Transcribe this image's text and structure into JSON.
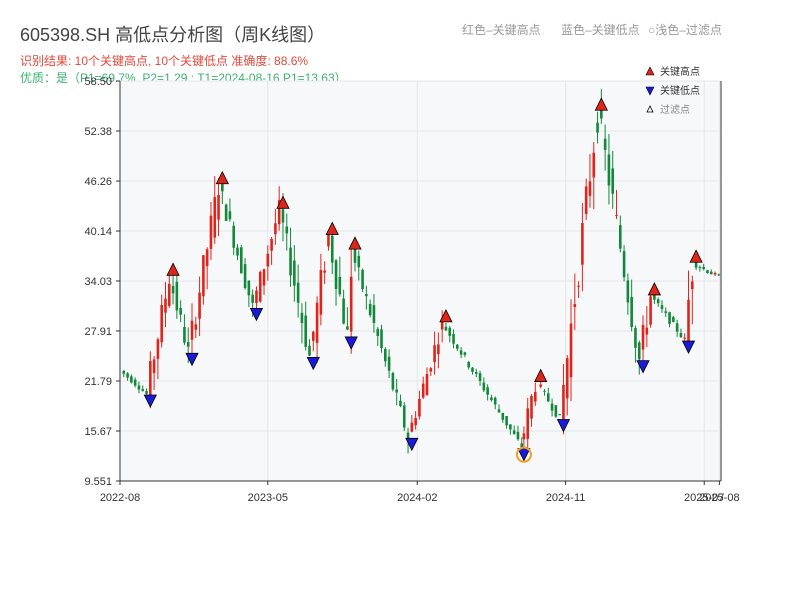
{
  "header": {
    "title": "605398.SH 高低点分析图（周K线图）",
    "result_line": "识别结果: 10个关键高点, 10个关键低点  准确度: 88.6%",
    "quality_line": "优质：是（P1=69.7%, P2=1.29 ; T1=2024-08-16 P1=13.63）"
  },
  "top_legend": {
    "red": "红色–关键高点",
    "blue": "蓝色–关键低点",
    "light": "浅色–过滤点"
  },
  "colors": {
    "up": "#e0241b",
    "down": "#12883a",
    "high_marker": "#e0241b",
    "low_marker": "#1a1adb",
    "plot_bg": "#f7f8fa",
    "grid": "#e4e6ea",
    "filtered_circle": "#f0a020"
  },
  "chart_data": {
    "type": "candlestick",
    "title": "605398.SH 高低点分析图（周K线图）",
    "ylim": [
      9.551,
      58.5
    ],
    "y_ticks": [
      "9.551",
      "15.67",
      "21.79",
      "27.91",
      "34.03",
      "40.14",
      "46.26",
      "52.38",
      "58.50"
    ],
    "y_tick_values": [
      9.551,
      15.67,
      21.79,
      27.91,
      34.03,
      40.14,
      46.26,
      52.38,
      58.5
    ],
    "x_range": [
      "2022-08-01",
      "2025-08-15"
    ],
    "x_ticks": [
      {
        "label": "2022-08",
        "date": "2022-08-01"
      },
      {
        "label": "2023-05",
        "date": "2023-05-01"
      },
      {
        "label": "2024-02",
        "date": "2024-02-01"
      },
      {
        "label": "2024-11",
        "date": "2024-11-01"
      },
      {
        "label": "2025-07",
        "date": "2025-07-15"
      },
      {
        "label": "2025-08",
        "date": "2025-08-12"
      }
    ],
    "legend": [
      {
        "label": "关键高点",
        "marker": "triangle-up",
        "color": "#e0241b"
      },
      {
        "label": "关键低点",
        "marker": "triangle-down",
        "color": "#1a1adb"
      },
      {
        "label": "过滤点",
        "marker": "triangle-up-hollow",
        "color": "#888888"
      }
    ],
    "legend_position": "top-right",
    "key_highs": [
      {
        "date": "2022-11-07",
        "value": 34.6
      },
      {
        "date": "2023-02-06",
        "value": 45.8
      },
      {
        "date": "2023-05-29",
        "value": 42.8
      },
      {
        "date": "2023-08-28",
        "value": 39.6
      },
      {
        "date": "2023-10-09",
        "value": 37.8
      },
      {
        "date": "2024-03-25",
        "value": 28.9
      },
      {
        "date": "2024-09-16",
        "value": 21.6
      },
      {
        "date": "2025-01-06",
        "value": 54.8
      },
      {
        "date": "2025-04-14",
        "value": 32.2
      },
      {
        "date": "2025-06-30",
        "value": 36.2
      }
    ],
    "key_lows": [
      {
        "date": "2022-09-26",
        "value": 20.2
      },
      {
        "date": "2022-12-12",
        "value": 25.3
      },
      {
        "date": "2023-04-10",
        "value": 30.8
      },
      {
        "date": "2023-07-24",
        "value": 24.8
      },
      {
        "date": "2023-10-02",
        "value": 27.3
      },
      {
        "date": "2024-01-22",
        "value": 14.9
      },
      {
        "date": "2024-08-16",
        "value": 13.63
      },
      {
        "date": "2024-10-28",
        "value": 17.2
      },
      {
        "date": "2025-03-24",
        "value": 24.4
      },
      {
        "date": "2025-06-16",
        "value": 26.8
      }
    ],
    "filtered_points": [
      {
        "date": "2024-08-16",
        "value": 13.63
      }
    ]
  }
}
